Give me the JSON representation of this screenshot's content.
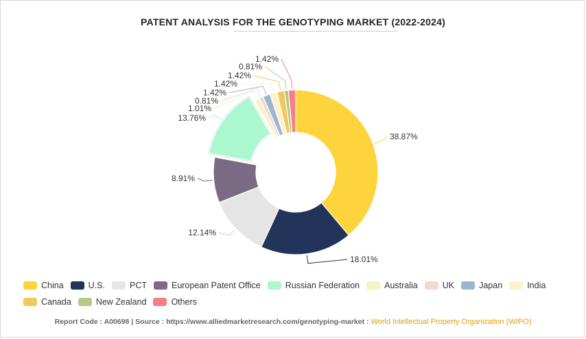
{
  "chart_data": {
    "type": "pie",
    "variant": "donut",
    "title": "PATENT ANALYSIS FOR THE GENOTYPING MARKET (2022-2024)",
    "categories": [
      "China",
      "U.S.",
      "PCT",
      "European Patent Office",
      "Russian Federation",
      "Australia",
      "UK",
      "Japan",
      "India",
      "Canada",
      "New Zealand",
      "Others"
    ],
    "values": [
      38.87,
      18.01,
      12.14,
      8.91,
      13.76,
      1.01,
      0.81,
      1.42,
      1.42,
      1.42,
      0.81,
      1.42
    ],
    "labels": [
      "38.87%",
      "18.01%",
      "12.14%",
      "8.91%",
      "13.76%",
      "1.01%",
      "0.81%",
      "1.42%",
      "1.42%",
      "1.42%",
      "0.81%",
      "1.42%"
    ],
    "colors": [
      "#fdd43b",
      "#23345a",
      "#e5e5e5",
      "#7a6a84",
      "#aaf7d0",
      "#f5f3c6",
      "#f3d8d3",
      "#9bb7cf",
      "#fdf1cc",
      "#efc95b",
      "#b6c98a",
      "#f87f7f"
    ],
    "selected": "Russian Federation",
    "legend_position": "bottom"
  },
  "footer": {
    "report_code_label": "Report Code : ",
    "report_code": "A00698",
    "separator": "  |  ",
    "source_label": "Source : ",
    "source_url": "https://www.alliedmarketresearch.com/genotyping-market",
    "source_sep": " : ",
    "source_org": "World Intellectual Property Organization (WIPO)"
  }
}
